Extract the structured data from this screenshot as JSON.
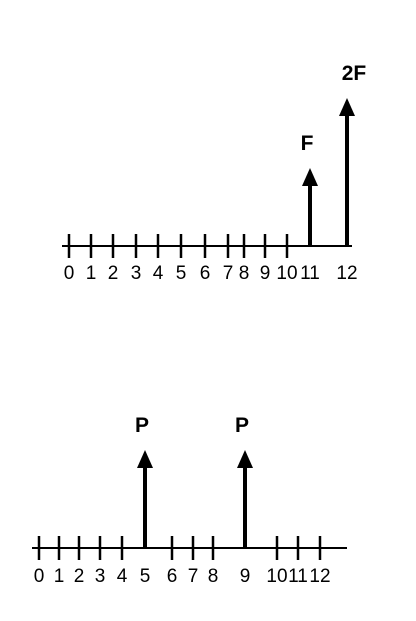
{
  "diagrams": [
    {
      "ticks": [
        "0",
        "1",
        "2",
        "3",
        "4",
        "5",
        "6",
        "7",
        "8",
        "9",
        "10",
        "11",
        "12"
      ],
      "arrows": [
        {
          "position": 11,
          "label": "F",
          "magnitude": 1
        },
        {
          "position": 12,
          "label": "2F",
          "magnitude": 2
        }
      ]
    },
    {
      "ticks": [
        "0",
        "1",
        "2",
        "3",
        "4",
        "5",
        "6",
        "7",
        "8",
        "9",
        "10",
        "11",
        "12"
      ],
      "arrows": [
        {
          "position": 5,
          "label": "P",
          "magnitude": 1
        },
        {
          "position": 9,
          "label": "P",
          "magnitude": 1
        }
      ]
    }
  ]
}
